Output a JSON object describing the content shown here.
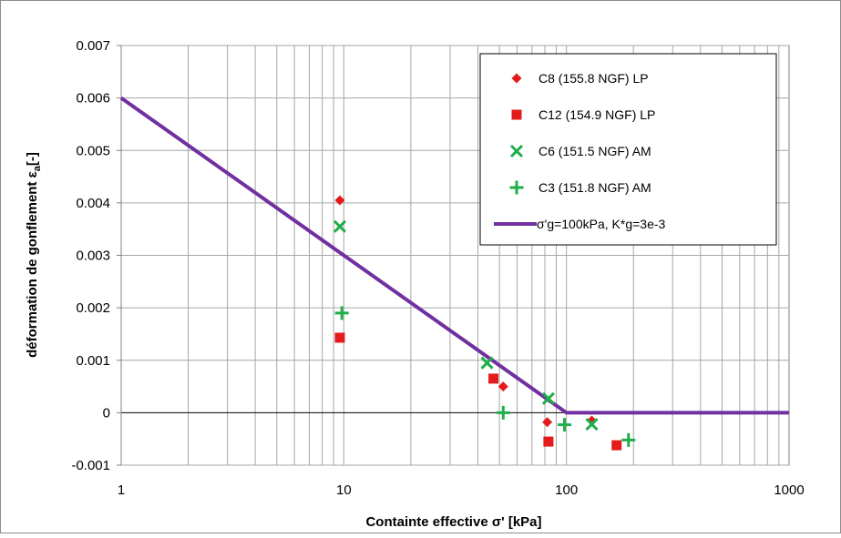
{
  "chart_data": {
    "type": "scatter",
    "title": "",
    "xlabel": "Containte effective σ' [kPa]",
    "ylabel": "déformation de gonflement  εa[-]",
    "ylabel_main": "déformation de gonflement  ε",
    "ylabel_sub": "a",
    "ylabel_tail": "[-]",
    "xscale": "log",
    "xlim": [
      1,
      1000
    ],
    "ylim": [
      -0.001,
      0.007
    ],
    "x_ticks": [
      1,
      10,
      100,
      1000
    ],
    "x_tick_labels": [
      "1",
      "10",
      "100",
      "1000"
    ],
    "y_ticks": [
      -0.001,
      0,
      0.001,
      0.002,
      0.003,
      0.004,
      0.005,
      0.006,
      0.007
    ],
    "y_tick_labels": [
      "-0.001",
      "0",
      "0.001",
      "0.002",
      "0.003",
      "0.004",
      "0.005",
      "0.006",
      "0.007"
    ],
    "grid": true,
    "legend_position": "top-right",
    "series": [
      {
        "name": "C8 (155.8 NGF) LP",
        "marker": "diamond",
        "color": "#e31b1b",
        "points": [
          [
            9.6,
            0.00405
          ],
          [
            52,
            0.0005
          ],
          [
            82,
            -0.00018
          ],
          [
            130,
            -0.00015
          ]
        ]
      },
      {
        "name": "C12 (154.9 NGF) LP",
        "marker": "square",
        "color": "#e31b1b",
        "points": [
          [
            9.6,
            0.00143
          ],
          [
            47,
            0.00065
          ],
          [
            83,
            -0.00055
          ],
          [
            168,
            -0.00062
          ]
        ]
      },
      {
        "name": "C6 (151.5 NGF) AM",
        "marker": "x",
        "color": "#1fae4b",
        "points": [
          [
            9.6,
            0.00355
          ],
          [
            44,
            0.00095
          ],
          [
            83,
            0.00027
          ],
          [
            130,
            -0.00022
          ]
        ]
      },
      {
        "name": "C3 (151.8 NGF) AM",
        "marker": "plus",
        "color": "#1fae4b",
        "points": [
          [
            9.8,
            0.0019
          ],
          [
            52,
            0.0
          ],
          [
            98,
            -0.00023
          ],
          [
            190,
            -0.00052
          ]
        ]
      },
      {
        "name": "σ'g=100kPa, K*g=3e-3",
        "marker": "line",
        "color": "#7030a0",
        "points": [
          [
            1,
            0.006
          ],
          [
            100,
            0.0
          ],
          [
            1000,
            0.0
          ]
        ]
      }
    ]
  }
}
